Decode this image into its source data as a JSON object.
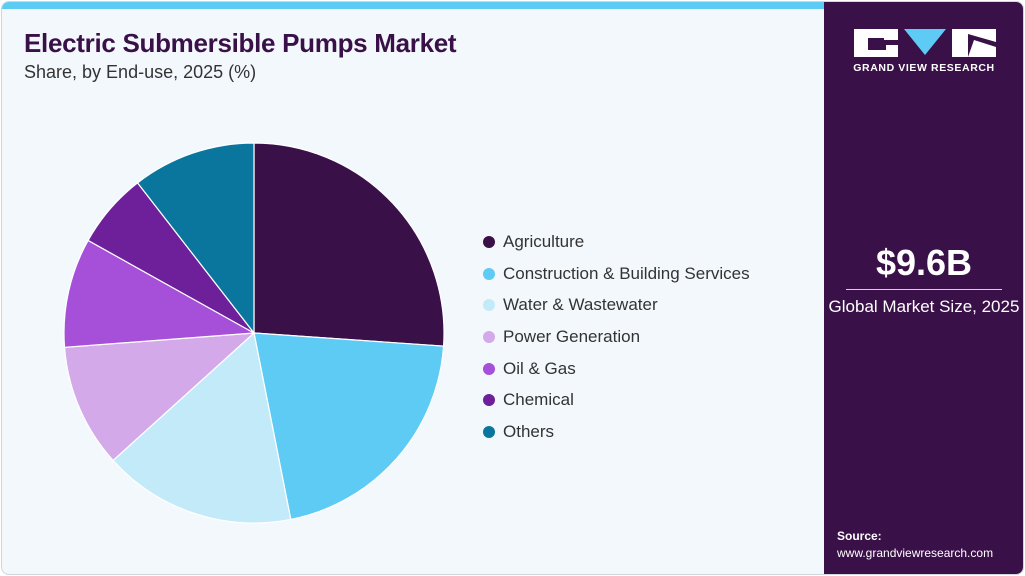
{
  "chart_data": {
    "type": "pie",
    "title": "Electric Submersible Pumps Market",
    "subtitle": "Share, by End-use, 2025 (%)",
    "categories": [
      "Agriculture",
      "Construction & Building Services",
      "Water & Wastewater",
      "Power Generation",
      "Oil & Gas",
      "Chemical",
      "Others"
    ],
    "values": [
      26.1,
      20.8,
      16.4,
      10.5,
      9.3,
      6.4,
      10.5
    ],
    "colors": [
      "#3a1048",
      "#5ecbf5",
      "#c3eaf9",
      "#d4a9ea",
      "#a64fd8",
      "#6e1f9a",
      "#0a769e"
    ],
    "legend_position": "right"
  },
  "side": {
    "logo_text": "GRAND VIEW RESEARCH",
    "market_size": "$9.6B",
    "market_label": "Global Market Size, 2025",
    "source_label": "Source:",
    "source_url": "www.grandviewresearch.com"
  }
}
